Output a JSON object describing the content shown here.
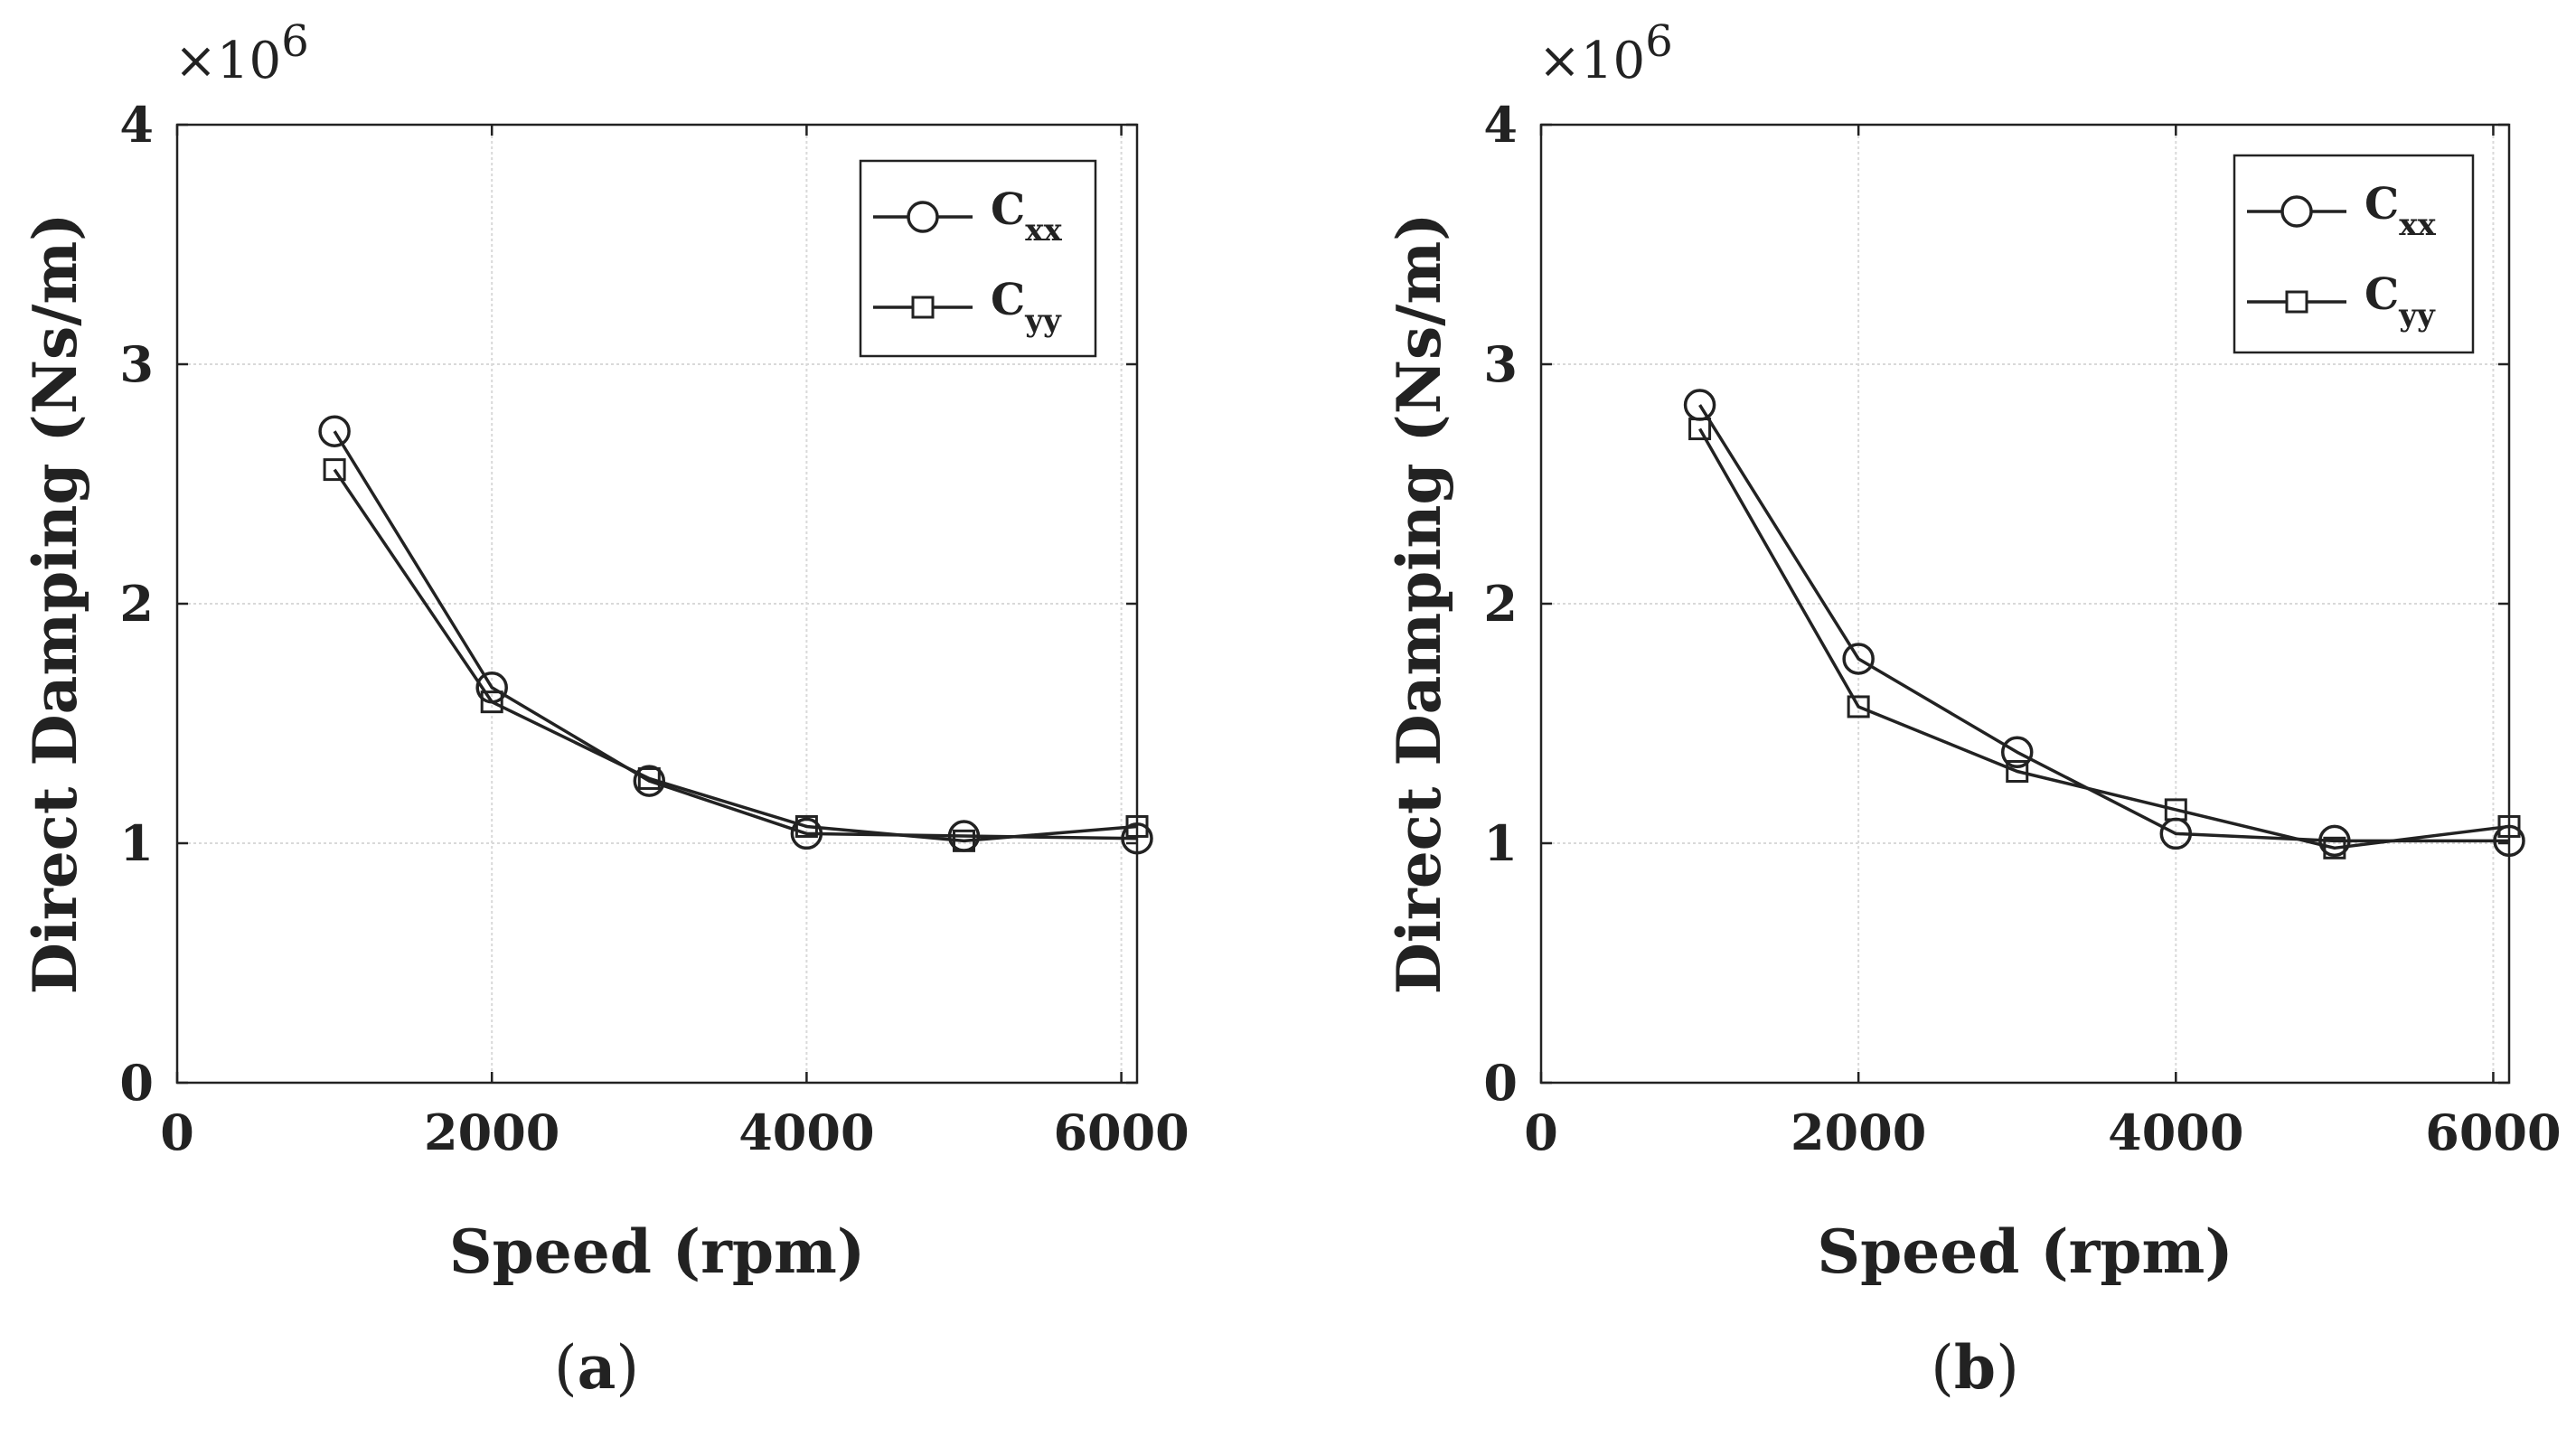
{
  "chart_data": [
    {
      "type": "line",
      "panel_label": "a",
      "caption_open": "(",
      "caption_close": ")",
      "xlabel": "Speed (rpm)",
      "ylabel": "Direct Damping (Ns/m)",
      "y_multiplier": "×10",
      "y_multiplier_exp": "6",
      "xlim": [
        0,
        6100
      ],
      "ylim": [
        0,
        4
      ],
      "xticks": [
        0,
        2000,
        4000,
        6000
      ],
      "xtick_labels": [
        "0",
        "2000",
        "4000",
        "6000"
      ],
      "yticks": [
        0,
        1,
        2,
        3,
        4
      ],
      "ytick_labels": [
        "0",
        "1",
        "2",
        "3",
        "4"
      ],
      "grid": true,
      "legend_position": "top-right",
      "x": [
        1000,
        2000,
        3000,
        4000,
        5000,
        6100
      ],
      "series": [
        {
          "name": "C",
          "subscript": "xx",
          "marker": "circle",
          "values": [
            2.72,
            1.65,
            1.26,
            1.04,
            1.03,
            1.02
          ]
        },
        {
          "name": "C",
          "subscript": "yy",
          "marker": "square",
          "values": [
            2.56,
            1.59,
            1.27,
            1.07,
            1.01,
            1.07
          ]
        }
      ]
    },
    {
      "type": "line",
      "panel_label": "b",
      "caption_open": "(",
      "caption_close": ")",
      "xlabel": "Speed (rpm)",
      "ylabel": "Direct Damping (Ns/m)",
      "y_multiplier": "×10",
      "y_multiplier_exp": "6",
      "xlim": [
        0,
        6100
      ],
      "ylim": [
        0,
        4
      ],
      "xticks": [
        0,
        2000,
        4000,
        6000
      ],
      "xtick_labels": [
        "0",
        "2000",
        "4000",
        "6000"
      ],
      "yticks": [
        0,
        1,
        2,
        3,
        4
      ],
      "ytick_labels": [
        "0",
        "1",
        "2",
        "3",
        "4"
      ],
      "grid": true,
      "legend_position": "top-right",
      "x": [
        1000,
        2000,
        3000,
        4000,
        5000,
        6100
      ],
      "series": [
        {
          "name": "C",
          "subscript": "xx",
          "marker": "circle",
          "values": [
            2.83,
            1.77,
            1.38,
            1.04,
            1.01,
            1.01
          ]
        },
        {
          "name": "C",
          "subscript": "yy",
          "marker": "square",
          "values": [
            2.73,
            1.57,
            1.3,
            1.14,
            0.98,
            1.07
          ]
        }
      ]
    }
  ]
}
